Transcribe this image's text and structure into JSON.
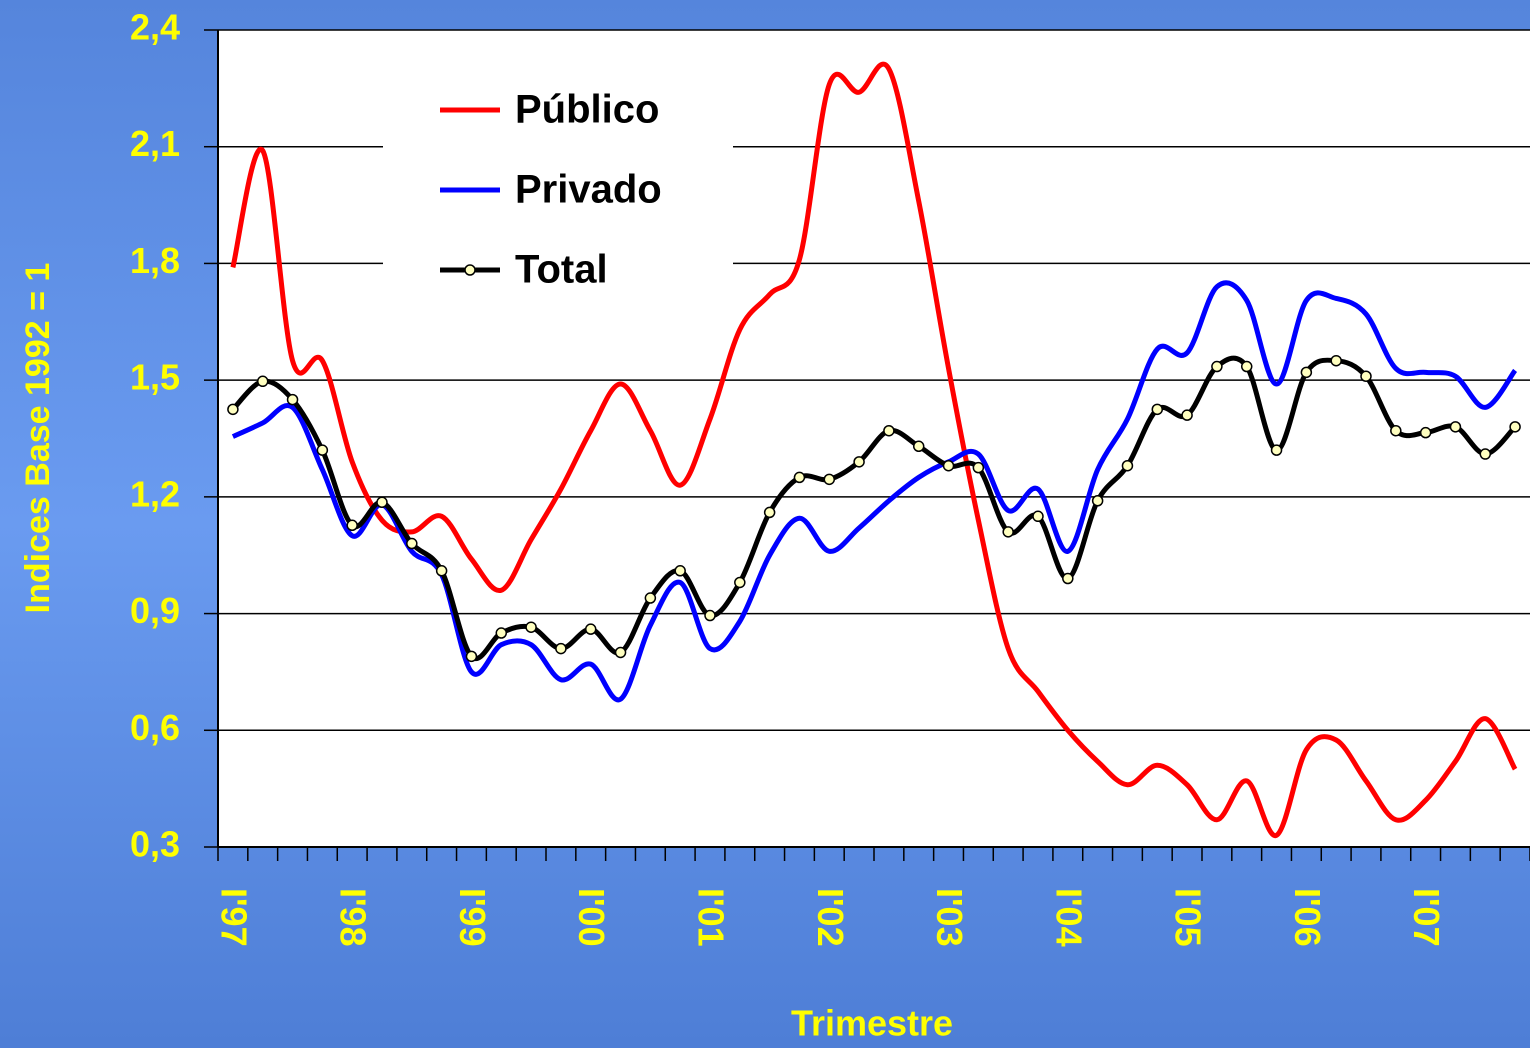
{
  "chart_data": {
    "type": "line",
    "y_label": "Indices Base 1992 = 1",
    "x_label": "Trimestre",
    "categories": [
      "I'97",
      null,
      null,
      null,
      "I'98",
      null,
      null,
      null,
      "I'99",
      null,
      null,
      null,
      "I'00",
      null,
      null,
      null,
      "I'01",
      null,
      null,
      null,
      "I'02",
      null,
      null,
      null,
      "I'03",
      null,
      null,
      null,
      "I'04",
      null,
      null,
      null,
      "I'05",
      null,
      null,
      null,
      "I'06",
      null,
      null,
      null,
      "I'07",
      null,
      null,
      null
    ],
    "series": [
      {
        "name": "Público",
        "color": "#ff0000",
        "markers": false,
        "values": [
          1.79,
          2.09,
          1.55,
          1.55,
          1.29,
          1.14,
          1.11,
          1.15,
          1.04,
          0.96,
          1.09,
          1.22,
          1.37,
          1.49,
          1.37,
          1.23,
          1.4,
          1.63,
          1.72,
          1.81,
          2.26,
          2.24,
          2.3,
          1.96,
          1.53,
          1.14,
          0.81,
          0.7,
          0.6,
          0.52,
          0.46,
          0.51,
          0.46,
          0.37,
          0.47,
          0.33,
          0.55,
          0.575,
          0.47,
          0.37,
          0.42,
          0.52,
          0.63,
          0.5
        ]
      },
      {
        "name": "Privado",
        "color": "#0000ff",
        "markers": false,
        "values": [
          1.355,
          1.39,
          1.43,
          1.27,
          1.1,
          1.18,
          1.06,
          1.0,
          0.75,
          0.82,
          0.82,
          0.73,
          0.77,
          0.68,
          0.87,
          0.98,
          0.81,
          0.88,
          1.05,
          1.145,
          1.06,
          1.12,
          1.19,
          1.25,
          1.29,
          1.31,
          1.165,
          1.22,
          1.06,
          1.27,
          1.4,
          1.58,
          1.57,
          1.74,
          1.705,
          1.49,
          1.705,
          1.71,
          1.67,
          1.53,
          1.52,
          1.51,
          1.43,
          1.525
        ]
      },
      {
        "name": "Total",
        "color": "#000000",
        "markers": true,
        "values": [
          1.425,
          1.497,
          1.45,
          1.32,
          1.127,
          1.186,
          1.08,
          1.01,
          0.79,
          0.85,
          0.865,
          0.81,
          0.86,
          0.8,
          0.94,
          1.01,
          0.895,
          0.98,
          1.16,
          1.25,
          1.245,
          1.29,
          1.37,
          1.33,
          1.28,
          1.275,
          1.11,
          1.15,
          0.99,
          1.19,
          1.28,
          1.425,
          1.41,
          1.535,
          1.535,
          1.32,
          1.52,
          1.55,
          1.51,
          1.37,
          1.365,
          1.38,
          1.31,
          1.38
        ]
      }
    ],
    "ylim": [
      0.3,
      2.4
    ],
    "yticks": [
      {
        "value": 0.3,
        "label": "0,3"
      },
      {
        "value": 0.6,
        "label": "0,6"
      },
      {
        "value": 0.9,
        "label": "0,9"
      },
      {
        "value": 1.2,
        "label": "1,2"
      },
      {
        "value": 1.5,
        "label": "1,5"
      },
      {
        "value": 1.8,
        "label": "1,8"
      },
      {
        "value": 2.1,
        "label": "2,1"
      },
      {
        "value": 2.4,
        "label": "2,4"
      }
    ],
    "grid": true
  }
}
